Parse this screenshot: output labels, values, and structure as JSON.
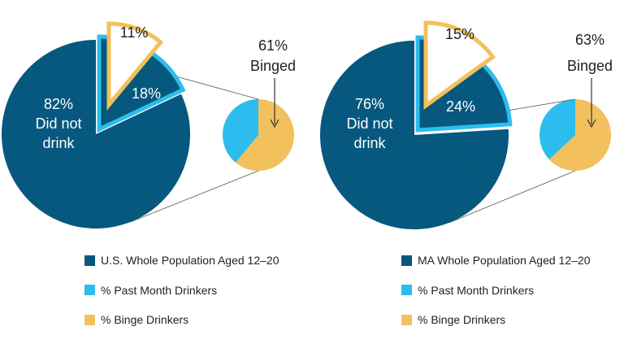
{
  "colors": {
    "dark": "#06587e",
    "light": "#2cbdee",
    "gold": "#f2c05c",
    "leader": "#555555"
  },
  "chart_data": [
    {
      "type": "pie",
      "population": "U.S. Whole Population Aged 12–20",
      "slices": [
        {
          "label": "Did not drink",
          "value": 82,
          "text": "82%"
        },
        {
          "label": "% Past Month Drinkers",
          "value": 18,
          "text": "18%"
        }
      ],
      "exploded_binge_share": {
        "value": 11,
        "text": "11%"
      },
      "breakdown": {
        "binged": 61,
        "text": "61%",
        "caption": "Binged"
      },
      "center_label": [
        "82%",
        "Did not",
        "drink"
      ],
      "legend": [
        "U.S. Whole Population Aged 12–20",
        "% Past Month Drinkers",
        "% Binge Drinkers"
      ]
    },
    {
      "type": "pie",
      "population": "MA Whole Population Aged 12–20",
      "slices": [
        {
          "label": "Did not drink",
          "value": 76,
          "text": "76%"
        },
        {
          "label": "% Past Month Drinkers",
          "value": 24,
          "text": "24%"
        }
      ],
      "exploded_binge_share": {
        "value": 15,
        "text": "15%"
      },
      "breakdown": {
        "binged": 63,
        "text": "63%",
        "caption": "Binged"
      },
      "center_label": [
        "76%",
        "Did not",
        "drink"
      ],
      "legend": [
        "MA Whole Population Aged 12–20",
        "% Past Month Drinkers",
        "% Binge Drinkers"
      ]
    }
  ]
}
